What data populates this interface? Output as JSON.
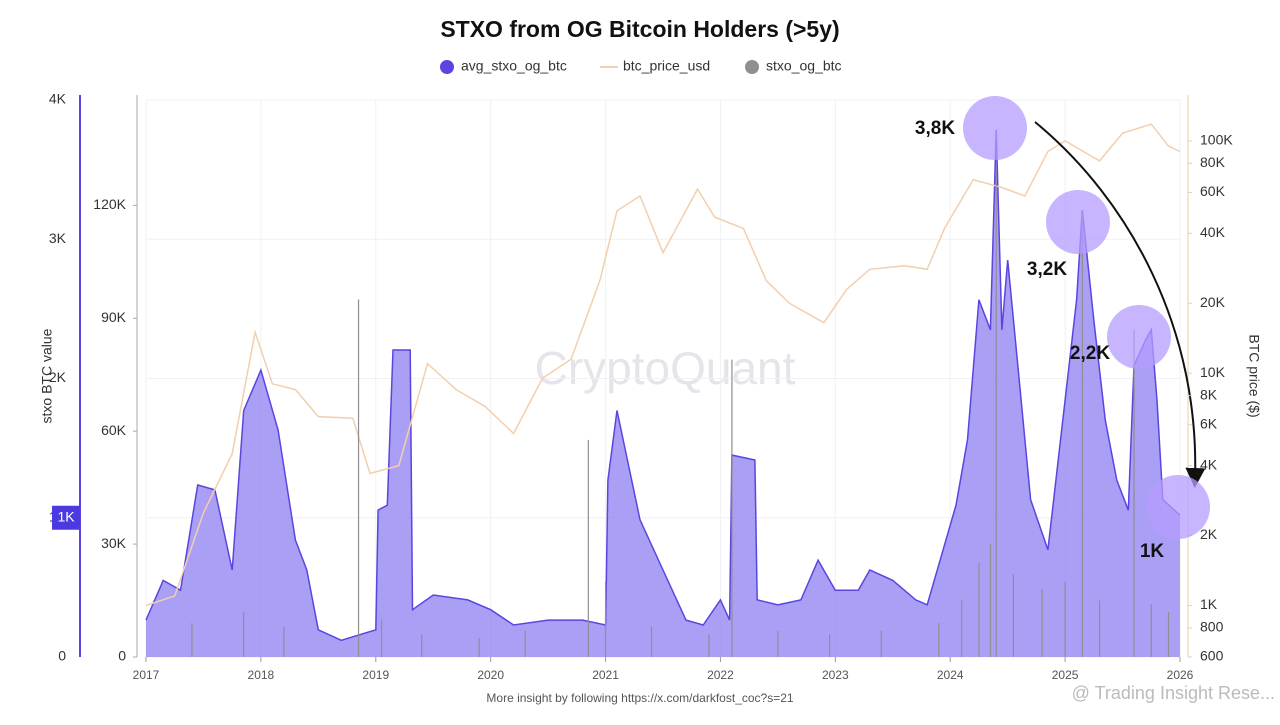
{
  "chart_data": {
    "type": "area",
    "title": "STXO from OG Bitcoin Holders (>5y)",
    "y_axis_label": "stxo BTC value",
    "y3_axis_label": "BTC price ($)",
    "watermark": "CryptoQuant",
    "footer": "More insight by following https://x.com/darkfost_coc?s=21",
    "corner_watermark": "@ Trading Insight Rese...",
    "annotations": [
      "3,8K",
      "3,2K",
      "2,2K",
      "1K"
    ],
    "current_value": {
      "value": 1000,
      "label": "1K"
    },
    "legend": "top",
    "xlim": [
      2017,
      2026
    ],
    "xticks": [
      2017,
      2018,
      2019,
      2020,
      2021,
      2022,
      2023,
      2024,
      2025,
      2026
    ],
    "ylim": [
      0,
      4000
    ],
    "yticks": [
      {
        "value": 0,
        "label": "0"
      },
      {
        "value": 1000,
        "label": "1K"
      },
      {
        "value": 2000,
        "label": "2K"
      },
      {
        "value": 3000,
        "label": "3K"
      },
      {
        "value": 4000,
        "label": "4K"
      }
    ],
    "y2lim": [
      0,
      148000
    ],
    "y2ticks": [
      {
        "value": 0,
        "label": "0"
      },
      {
        "value": 30000,
        "label": "30K"
      },
      {
        "value": 60000,
        "label": "60K"
      },
      {
        "value": 90000,
        "label": "90K"
      },
      {
        "value": 120000,
        "label": "120K"
      }
    ],
    "y3lim": [
      600,
      150000
    ],
    "y3scale": "log",
    "y3ticks": [
      {
        "value": 600,
        "label": "600"
      },
      {
        "value": 800,
        "label": "800"
      },
      {
        "value": 1000,
        "label": "1K"
      },
      {
        "value": 2000,
        "label": "2K"
      },
      {
        "value": 4000,
        "label": "4K"
      },
      {
        "value": 6000,
        "label": "6K"
      },
      {
        "value": 8000,
        "label": "8K"
      },
      {
        "value": 10000,
        "label": "10K"
      },
      {
        "value": 20000,
        "label": "20K"
      },
      {
        "value": 40000,
        "label": "40K"
      },
      {
        "value": 60000,
        "label": "60K"
      },
      {
        "value": 80000,
        "label": "80K"
      },
      {
        "value": 100000,
        "label": "100K"
      }
    ],
    "series": [
      {
        "name": "avg_stxo_og_btc",
        "color": "#5b45e0",
        "axis": "y",
        "x": [
          2017.0,
          2017.15,
          2017.3,
          2017.45,
          2017.6,
          2017.75,
          2017.85,
          2018.0,
          2018.15,
          2018.3,
          2018.4,
          2018.5,
          2018.7,
          2019.0,
          2019.02,
          2019.1,
          2019.15,
          2019.3,
          2019.32,
          2019.5,
          2019.8,
          2020.0,
          2020.2,
          2020.5,
          2020.8,
          2021.0,
          2021.02,
          2021.1,
          2021.3,
          2021.5,
          2021.7,
          2021.85,
          2022.0,
          2022.08,
          2022.1,
          2022.3,
          2022.32,
          2022.5,
          2022.7,
          2022.85,
          2023.0,
          2023.2,
          2023.3,
          2023.5,
          2023.7,
          2023.8,
          2023.95,
          2024.05,
          2024.15,
          2024.25,
          2024.35,
          2024.4,
          2024.45,
          2024.5,
          2024.6,
          2024.7,
          2024.85,
          2025.0,
          2025.1,
          2025.15,
          2025.25,
          2025.35,
          2025.45,
          2025.55,
          2025.6,
          2025.7,
          2025.75,
          2025.8,
          2025.85,
          2025.95,
          2026.0
        ],
        "values": [
          265,
          550,
          480,
          1235,
          1200,
          625,
          1770,
          2060,
          1630,
          840,
          625,
          195,
          120,
          195,
          1055,
          1090,
          2205,
          2205,
          340,
          445,
          410,
          340,
          230,
          265,
          265,
          230,
          1270,
          1770,
          985,
          625,
          265,
          230,
          410,
          265,
          1450,
          1415,
          410,
          375,
          410,
          695,
          480,
          480,
          625,
          550,
          410,
          375,
          805,
          1090,
          1560,
          2565,
          2350,
          3785,
          2350,
          2850,
          1990,
          1130,
          770,
          1845,
          2565,
          3210,
          2420,
          1700,
          1270,
          1055,
          2095,
          2275,
          2350,
          1845,
          1130,
          1055,
          1020
        ]
      },
      {
        "name": "btc_price_usd",
        "color": "#f2cfae",
        "axis": "y3",
        "x": [
          2017.0,
          2017.25,
          2017.5,
          2017.75,
          2017.95,
          2018.1,
          2018.3,
          2018.5,
          2018.8,
          2018.95,
          2019.2,
          2019.45,
          2019.7,
          2019.95,
          2020.2,
          2020.45,
          2020.7,
          2020.95,
          2021.1,
          2021.3,
          2021.5,
          2021.8,
          2021.95,
          2022.2,
          2022.4,
          2022.6,
          2022.9,
          2023.1,
          2023.3,
          2023.6,
          2023.8,
          2023.95,
          2024.2,
          2024.45,
          2024.65,
          2024.85,
          2025.0,
          2025.3,
          2025.5,
          2025.75,
          2025.9,
          2026.0
        ],
        "values": [
          1000,
          1100,
          2500,
          4500,
          15000,
          9000,
          8500,
          6500,
          6400,
          3700,
          4000,
          11000,
          8500,
          7200,
          5500,
          9500,
          11500,
          25000,
          50000,
          58000,
          33000,
          62000,
          47000,
          42000,
          25000,
          20000,
          16500,
          23000,
          28000,
          29000,
          28000,
          42000,
          68000,
          63000,
          58000,
          90000,
          100000,
          82000,
          108000,
          118000,
          95000,
          90000
        ]
      },
      {
        "name": "stxo_og_btc",
        "color": "#8e8e93",
        "axis": "y2",
        "x": [
          2017.4,
          2017.85,
          2018.2,
          2018.85,
          2019.05,
          2019.4,
          2019.9,
          2020.3,
          2020.85,
          2021.0,
          2021.4,
          2021.9,
          2022.1,
          2022.5,
          2022.95,
          2023.4,
          2023.9,
          2024.1,
          2024.25,
          2024.35,
          2024.4,
          2024.55,
          2024.8,
          2025.0,
          2025.15,
          2025.3,
          2025.6,
          2025.75,
          2025.9
        ],
        "values": [
          9000,
          12000,
          8000,
          95000,
          10000,
          6000,
          5000,
          7000,
          57700,
          20000,
          8000,
          6000,
          79000,
          7000,
          6000,
          7000,
          9000,
          15000,
          25000,
          30000,
          129600,
          22000,
          18000,
          20000,
          117600,
          15000,
          87000,
          14000,
          12000
        ]
      }
    ]
  }
}
